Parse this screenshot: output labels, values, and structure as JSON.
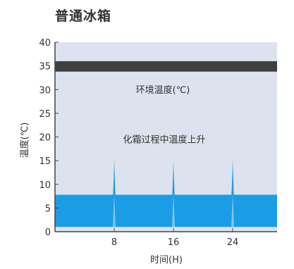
{
  "chart_data": {
    "type": "area",
    "title": "普通冰箱",
    "xlabel": "时间(H)",
    "ylabel": "温度(℃)",
    "xlim": [
      0,
      30
    ],
    "ylim": [
      0,
      40
    ],
    "yticks": [
      0,
      5,
      10,
      15,
      20,
      25,
      30,
      35,
      40
    ],
    "xticks": [
      8,
      16,
      24
    ],
    "grid": false,
    "ambient_band": {
      "label": "环境温度(℃)",
      "y_from": 33.8,
      "y_to": 36
    },
    "fridge_band": {
      "y_from": 1,
      "y_to": 7.8
    },
    "defrost_spikes": [
      {
        "x": 8,
        "peak": 15.5
      },
      {
        "x": 16,
        "peak": 15.2
      },
      {
        "x": 24,
        "peak": 15.5
      }
    ],
    "annotation": "化霜过程中温度上升",
    "colors": {
      "plot_bg": "#dde3ee",
      "ambient_band": "#3f3f3f",
      "fridge_band": "#1a9de6",
      "spike": "#1a9de6",
      "axis": "#444444"
    }
  }
}
